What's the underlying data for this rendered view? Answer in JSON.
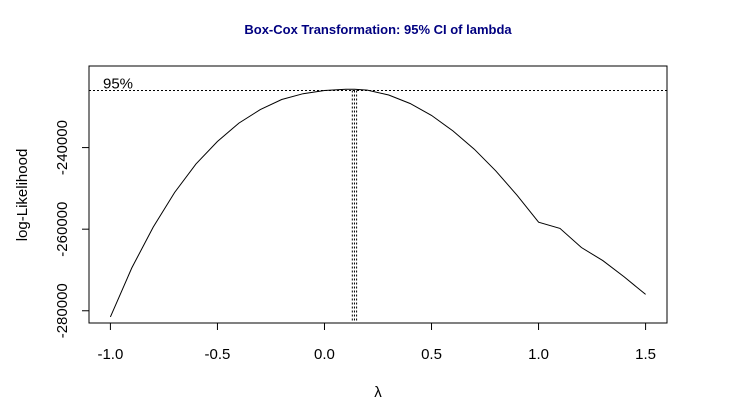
{
  "chart_data": {
    "type": "line",
    "title": "Box-Cox Transformation: 95% CI of lambda",
    "xlabel": "λ",
    "ylabel": "log-Likelihood",
    "xlim": [
      -1.1,
      1.6
    ],
    "ylim": [
      -283000,
      -220000
    ],
    "x_ticks": [
      -1.0,
      -0.5,
      0.0,
      0.5,
      1.0,
      1.5
    ],
    "x_tick_labels": [
      "-1.0",
      "-0.5",
      "0.0",
      "0.5",
      "1.0",
      "1.5"
    ],
    "y_ticks": [
      -280000,
      -260000,
      -240000
    ],
    "y_tick_labels": [
      "-280000",
      "-260000",
      "-240000"
    ],
    "ci_label": "95%",
    "ci_threshold_y": -226000,
    "lambda_hat": 0.14,
    "ci_lower": 0.13,
    "ci_upper": 0.15,
    "series": [
      {
        "x": [
          -1.0,
          -0.9,
          -0.8,
          -0.7,
          -0.6,
          -0.5,
          -0.4,
          -0.3,
          -0.2,
          -0.1,
          0.0,
          0.1,
          0.14,
          0.2,
          0.3,
          0.4,
          0.5,
          0.6,
          0.7,
          0.8,
          0.9,
          1.0,
          1.1,
          1.2,
          1.3,
          1.4,
          1.5
        ],
        "y": [
          -281500,
          -269500,
          -259500,
          -251000,
          -244000,
          -238500,
          -234000,
          -230700,
          -228200,
          -226800,
          -226000,
          -225700,
          -225700,
          -225900,
          -227100,
          -229200,
          -232100,
          -235900,
          -240400,
          -245700,
          -251700,
          -258300,
          -259800,
          -264500,
          -267700,
          -271700,
          -276000
        ]
      }
    ],
    "grid": false,
    "colors": {
      "line": "#000000",
      "title": "#000080"
    }
  }
}
